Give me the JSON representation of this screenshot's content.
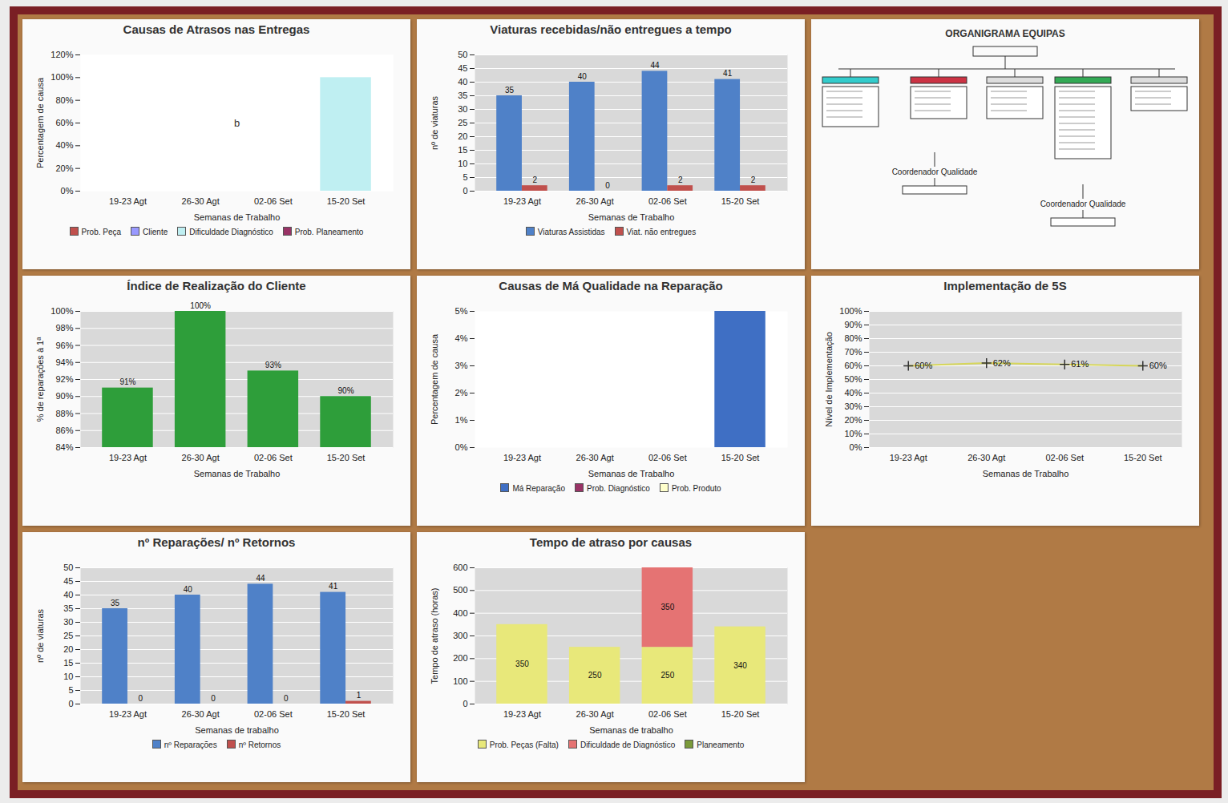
{
  "chart_data": [
    {
      "type": "bar",
      "title": "Causas de Atrasos nas Entregas",
      "categories": [
        "19-23 Agt",
        "26-30 Agt",
        "02-06 Set",
        "15-20 Set"
      ],
      "x_label": "Semanas de Trabalho",
      "y_label": "Percentagem de causa",
      "stacked": true,
      "series": [
        {
          "name": "Prob. Peça",
          "color": "#c0504d",
          "values": [
            0,
            0,
            0,
            0
          ]
        },
        {
          "name": "Cliente",
          "color": "#9999ff",
          "values": [
            0,
            0,
            0,
            0
          ]
        },
        {
          "name": "Dificuldade Diagnóstico",
          "color": "#bfeff2",
          "values": [
            0,
            0,
            0,
            100
          ]
        },
        {
          "name": "Prob. Planeamento",
          "color": "#993366",
          "values": [
            0,
            0,
            0,
            0
          ]
        }
      ],
      "ylim": [
        0,
        120
      ],
      "yticks": [
        {
          "value": 0,
          "label": "0%"
        },
        {
          "value": 20,
          "label": "20%"
        },
        {
          "value": 40,
          "label": "40%"
        },
        {
          "value": 60,
          "label": "60%"
        },
        {
          "value": 80,
          "label": "80%"
        },
        {
          "value": 100,
          "label": "100%"
        },
        {
          "value": 120,
          "label": "120%"
        }
      ],
      "grid": false,
      "legend": "bottom",
      "annotations": [
        {
          "text": "b"
        }
      ]
    },
    {
      "type": "bar",
      "title": "Viaturas recebidas/não entregues a tempo",
      "categories": [
        "19-23 Agt",
        "26-30 Agt",
        "02-06 Set",
        "15-20 Set"
      ],
      "x_label": "Semanas de Trabalho",
      "y_label": "nº de viaturas",
      "series": [
        {
          "name": "Viaturas Assistidas",
          "color": "#4f81c8",
          "values": [
            35,
            40,
            44,
            41
          ]
        },
        {
          "name": "Viat. não entregues",
          "color": "#c0504d",
          "values": [
            2,
            0,
            2,
            2
          ]
        }
      ],
      "ylim": [
        0,
        50
      ],
      "yticks": [
        0,
        5,
        10,
        15,
        20,
        25,
        30,
        35,
        40,
        45,
        50
      ],
      "grid": true,
      "legend": "bottom",
      "data_labels": true
    },
    {
      "type": "bar",
      "title": "Índice de Realização do Cliente",
      "categories": [
        "19-23 Agt",
        "26-30 Agt",
        "02-06 Set",
        "15-20 Set"
      ],
      "x_label": "Semanas de Trabalho",
      "y_label": "% de reparações à 1ª",
      "values": [
        91,
        100,
        93,
        90
      ],
      "value_labels": [
        "91%",
        "100%",
        "93%",
        "90%"
      ],
      "color": "#2e9e3a",
      "ylim": [
        84,
        100
      ],
      "yticks": [
        {
          "value": 84,
          "label": "84%"
        },
        {
          "value": 86,
          "label": "86%"
        },
        {
          "value": 88,
          "label": "88%"
        },
        {
          "value": 90,
          "label": "90%"
        },
        {
          "value": 92,
          "label": "92%"
        },
        {
          "value": 94,
          "label": "94%"
        },
        {
          "value": 96,
          "label": "96%"
        },
        {
          "value": 98,
          "label": "98%"
        },
        {
          "value": 100,
          "label": "100%"
        }
      ],
      "grid": true,
      "data_labels": true
    },
    {
      "type": "bar",
      "title": "Causas de Má Qualidade na Reparação",
      "categories": [
        "19-23 Agt",
        "26-30 Agt",
        "02-06 Set",
        "15-20 Set"
      ],
      "x_label": "Semanas de Trabalho",
      "y_label": "Percentagem de causa",
      "stacked": true,
      "series": [
        {
          "name": "Má Reparação",
          "color": "#3f6fc4",
          "values": [
            0,
            0,
            0,
            5
          ]
        },
        {
          "name": "Prob. Diagnóstico",
          "color": "#993366",
          "values": [
            0,
            0,
            0,
            0
          ]
        },
        {
          "name": "Prob. Produto",
          "color": "#ffffcc",
          "values": [
            0,
            0,
            0,
            0
          ]
        }
      ],
      "ylim": [
        0,
        5
      ],
      "yticks": [
        {
          "value": 0,
          "label": "0%"
        },
        {
          "value": 1,
          "label": "1%"
        },
        {
          "value": 2,
          "label": "2%"
        },
        {
          "value": 3,
          "label": "3%"
        },
        {
          "value": 4,
          "label": "4%"
        },
        {
          "value": 5,
          "label": "5%"
        }
      ],
      "grid": false,
      "legend": "bottom"
    },
    {
      "type": "line",
      "title": "Implementação de 5S",
      "categories": [
        "19-23 Agt",
        "26-30 Agt",
        "02-06 Set",
        "15-20 Set"
      ],
      "x_label": "Semanas de Trabalho",
      "y_label": "Nível de Implementação",
      "values": [
        60,
        62,
        61,
        60
      ],
      "value_labels": [
        "60%",
        "62%",
        "61%",
        "60%"
      ],
      "color": "#d6d65a",
      "marker": "plus",
      "ylim": [
        0,
        100
      ],
      "yticks": [
        {
          "value": 0,
          "label": "0%"
        },
        {
          "value": 10,
          "label": "10%"
        },
        {
          "value": 20,
          "label": "20%"
        },
        {
          "value": 30,
          "label": "30%"
        },
        {
          "value": 40,
          "label": "40%"
        },
        {
          "value": 50,
          "label": "50%"
        },
        {
          "value": 60,
          "label": "60%"
        },
        {
          "value": 70,
          "label": "70%"
        },
        {
          "value": 80,
          "label": "80%"
        },
        {
          "value": 90,
          "label": "90%"
        },
        {
          "value": 100,
          "label": "100%"
        }
      ],
      "grid": true,
      "data_labels": true
    },
    {
      "type": "bar",
      "title": "nº Reparações/ nº Retornos",
      "categories": [
        "19-23 Agt",
        "26-30 Agt",
        "02-06 Set",
        "15-20 Set"
      ],
      "x_label": "Semanas de trabalho",
      "y_label": "nº de viaturas",
      "series": [
        {
          "name": "nº Reparações",
          "color": "#4f81c8",
          "values": [
            35,
            40,
            44,
            41
          ]
        },
        {
          "name": "nº Retornos",
          "color": "#c0504d",
          "values": [
            0,
            0,
            0,
            1
          ]
        }
      ],
      "ylim": [
        0,
        50
      ],
      "yticks": [
        0,
        5,
        10,
        15,
        20,
        25,
        30,
        35,
        40,
        45,
        50
      ],
      "grid": true,
      "legend": "bottom",
      "data_labels": true
    },
    {
      "type": "bar",
      "title": "Tempo de atraso por causas",
      "categories": [
        "19-23 Agt",
        "26-30 Agt",
        "02-06 Set",
        "15-20 Set"
      ],
      "x_label": "Semanas de trabalho",
      "y_label": "Tempo de atraso (horas)",
      "stacked": true,
      "series": [
        {
          "name": "Prob. Peças (Falta)",
          "color": "#e8e87a",
          "values": [
            350,
            250,
            250,
            340
          ]
        },
        {
          "name": "Dificuldade de Diagnóstico",
          "color": "#e57373",
          "values": [
            0,
            0,
            350,
            0
          ]
        },
        {
          "name": "Planeamento",
          "color": "#7a9a3a",
          "values": [
            0,
            0,
            0,
            0
          ]
        }
      ],
      "ylim": [
        0,
        600
      ],
      "yticks": [
        0,
        100,
        200,
        300,
        400,
        500,
        600
      ],
      "grid": true,
      "legend": "bottom",
      "data_labels": true
    }
  ],
  "diagram": {
    "title": "ORGANIGRAMA EQUIPAS",
    "nodes": [
      {
        "label": "Coordenador Qualidade"
      },
      {
        "label": "Coordenador Qualidade"
      }
    ]
  }
}
